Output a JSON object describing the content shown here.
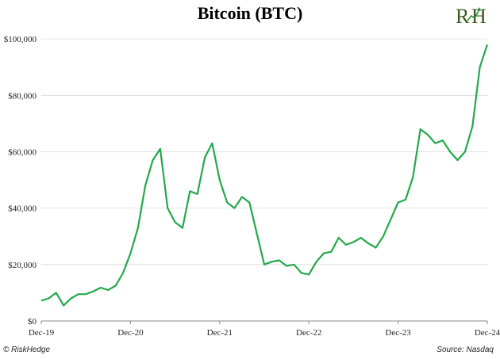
{
  "chart_data": {
    "type": "line",
    "title": "Bitcoin (BTC)",
    "xlabel": "",
    "ylabel": "",
    "xlim": [
      "2019-12",
      "2024-12"
    ],
    "ylim": [
      0,
      102000
    ],
    "x_ticks": [
      "Dec-19",
      "Dec-20",
      "Dec-21",
      "Dec-22",
      "Dec-23",
      "Dec-24"
    ],
    "y_ticks": [
      "$0",
      "$20,000",
      "$40,000",
      "$60,000",
      "$80,000",
      "$100,000"
    ],
    "y_tick_values": [
      0,
      20000,
      40000,
      60000,
      80000,
      100000
    ],
    "grid": "horizontal",
    "color": "#22a94a",
    "series": [
      {
        "x": [
          "2019-12",
          "2020-01",
          "2020-02",
          "2020-03",
          "2020-04",
          "2020-05",
          "2020-06",
          "2020-07",
          "2020-08",
          "2020-09",
          "2020-10",
          "2020-11",
          "2020-12",
          "2021-01",
          "2021-02",
          "2021-03",
          "2021-04",
          "2021-05",
          "2021-06",
          "2021-07",
          "2021-08",
          "2021-09",
          "2021-10",
          "2021-11",
          "2021-12",
          "2022-01",
          "2022-02",
          "2022-03",
          "2022-04",
          "2022-05",
          "2022-06",
          "2022-07",
          "2022-08",
          "2022-09",
          "2022-10",
          "2022-11",
          "2022-12",
          "2023-01",
          "2023-02",
          "2023-03",
          "2023-04",
          "2023-05",
          "2023-06",
          "2023-07",
          "2023-08",
          "2023-09",
          "2023-10",
          "2023-11",
          "2023-12",
          "2024-01",
          "2024-02",
          "2024-03",
          "2024-04",
          "2024-05",
          "2024-06",
          "2024-07",
          "2024-08",
          "2024-09",
          "2024-10",
          "2024-11",
          "2024-12"
        ],
        "values": [
          7200,
          8000,
          10000,
          5500,
          8000,
          9500,
          9500,
          10500,
          11800,
          11000,
          12500,
          17000,
          24000,
          33000,
          48000,
          57000,
          61000,
          40000,
          35000,
          33000,
          46000,
          45000,
          58000,
          63000,
          50000,
          42000,
          40000,
          44000,
          42000,
          31000,
          20000,
          21000,
          21500,
          19500,
          20000,
          17000,
          16500,
          21000,
          24000,
          24500,
          29500,
          27000,
          28000,
          29500,
          27500,
          26000,
          30000,
          36000,
          42000,
          43000,
          51000,
          68000,
          66000,
          63000,
          64000,
          60000,
          57000,
          60000,
          69000,
          90000,
          98000
        ]
      }
    ],
    "source": "Source: Nasdaq",
    "credit": "© RiskHedge"
  },
  "logo": {
    "text": "RH",
    "primary_color": "#3a5a1e",
    "accent_color": "#2e8b3a"
  }
}
